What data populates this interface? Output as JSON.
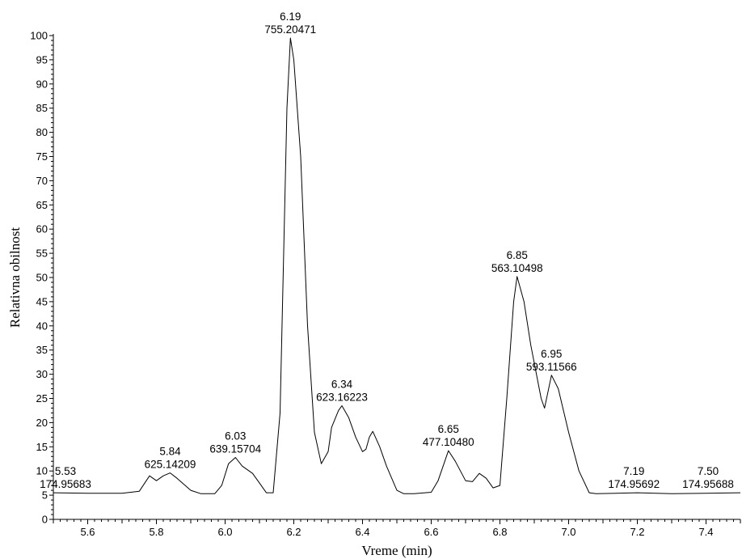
{
  "chart_data": {
    "type": "line",
    "title": "",
    "xlabel": "Vreme (min)",
    "ylabel": "Relativna obilnost",
    "xlim": [
      5.5,
      7.5
    ],
    "ylim": [
      0,
      100
    ],
    "x_ticks": [
      "5.6",
      "5.8",
      "6.0",
      "6.2",
      "6.4",
      "6.6",
      "6.8",
      "7.0",
      "7.2",
      "7.4"
    ],
    "x_tick_values": [
      5.6,
      5.8,
      6.0,
      6.2,
      6.4,
      6.6,
      6.8,
      7.0,
      7.2,
      7.4
    ],
    "y_ticks": [
      "0",
      "5",
      "10",
      "15",
      "20",
      "25",
      "30",
      "35",
      "40",
      "45",
      "50",
      "55",
      "60",
      "65",
      "70",
      "75",
      "80",
      "85",
      "90",
      "95",
      "100"
    ],
    "y_tick_values": [
      0,
      5,
      10,
      15,
      20,
      25,
      30,
      35,
      40,
      45,
      50,
      55,
      60,
      65,
      70,
      75,
      80,
      85,
      90,
      95,
      100
    ],
    "grid": false,
    "series": [
      {
        "x": [
          5.5,
          5.6,
          5.7,
          5.75,
          5.78,
          5.8,
          5.82,
          5.84,
          5.86,
          5.9,
          5.93,
          5.97,
          5.99,
          6.01,
          6.03,
          6.05,
          6.08,
          6.1,
          6.12,
          6.14,
          6.16,
          6.18,
          6.19,
          6.2,
          6.22,
          6.24,
          6.26,
          6.28,
          6.3,
          6.31,
          6.33,
          6.34,
          6.36,
          6.38,
          6.4,
          6.41,
          6.42,
          6.43,
          6.45,
          6.47,
          6.5,
          6.52,
          6.55,
          6.6,
          6.62,
          6.65,
          6.67,
          6.7,
          6.72,
          6.74,
          6.76,
          6.78,
          6.8,
          6.82,
          6.84,
          6.85,
          6.87,
          6.89,
          6.92,
          6.93,
          6.95,
          6.97,
          7.0,
          7.03,
          7.06,
          7.08,
          7.2,
          7.3,
          7.4,
          7.5
        ],
        "y": [
          5.5,
          5.4,
          5.4,
          5.8,
          9.0,
          8.0,
          9.0,
          9.6,
          8.5,
          6.0,
          5.3,
          5.3,
          7.0,
          11.5,
          12.8,
          11.0,
          9.5,
          7.5,
          5.5,
          5.5,
          22.0,
          85.0,
          99.5,
          95.0,
          75.0,
          40.0,
          18.0,
          11.5,
          14.0,
          19.0,
          22.5,
          23.5,
          21.0,
          17.0,
          14.0,
          14.5,
          17.0,
          18.2,
          15.0,
          11.0,
          6.0,
          5.3,
          5.3,
          5.6,
          8.0,
          14.2,
          12.0,
          8.0,
          7.8,
          9.5,
          8.5,
          6.5,
          7.0,
          25.0,
          45.0,
          50.2,
          45.0,
          36.0,
          25.0,
          23.0,
          29.8,
          27.0,
          18.0,
          10.0,
          5.5,
          5.3,
          5.5,
          5.3,
          5.4,
          5.5
        ]
      }
    ],
    "peak_labels": [
      {
        "x": 5.53,
        "y": 5.5,
        "rt": "5.53",
        "mz": "174.95683"
      },
      {
        "x": 5.84,
        "y": 9.6,
        "rt": "5.84",
        "mz": "625.14209"
      },
      {
        "x": 6.03,
        "y": 12.8,
        "rt": "6.03",
        "mz": "639.15704"
      },
      {
        "x": 6.19,
        "y": 99.5,
        "rt": "6.19",
        "mz": "755.20471"
      },
      {
        "x": 6.34,
        "y": 23.5,
        "rt": "6.34",
        "mz": "623.16223"
      },
      {
        "x": 6.65,
        "y": 14.2,
        "rt": "6.65",
        "mz": "477.10480"
      },
      {
        "x": 6.85,
        "y": 50.2,
        "rt": "6.85",
        "mz": "563.10498"
      },
      {
        "x": 6.95,
        "y": 29.8,
        "rt": "6.95",
        "mz": "593.11566"
      },
      {
        "x": 7.19,
        "y": 5.5,
        "rt": "7.19",
        "mz": "174.95692"
      },
      {
        "x": 7.5,
        "y": 5.5,
        "rt": "7.50",
        "mz": "174.95688"
      }
    ]
  }
}
